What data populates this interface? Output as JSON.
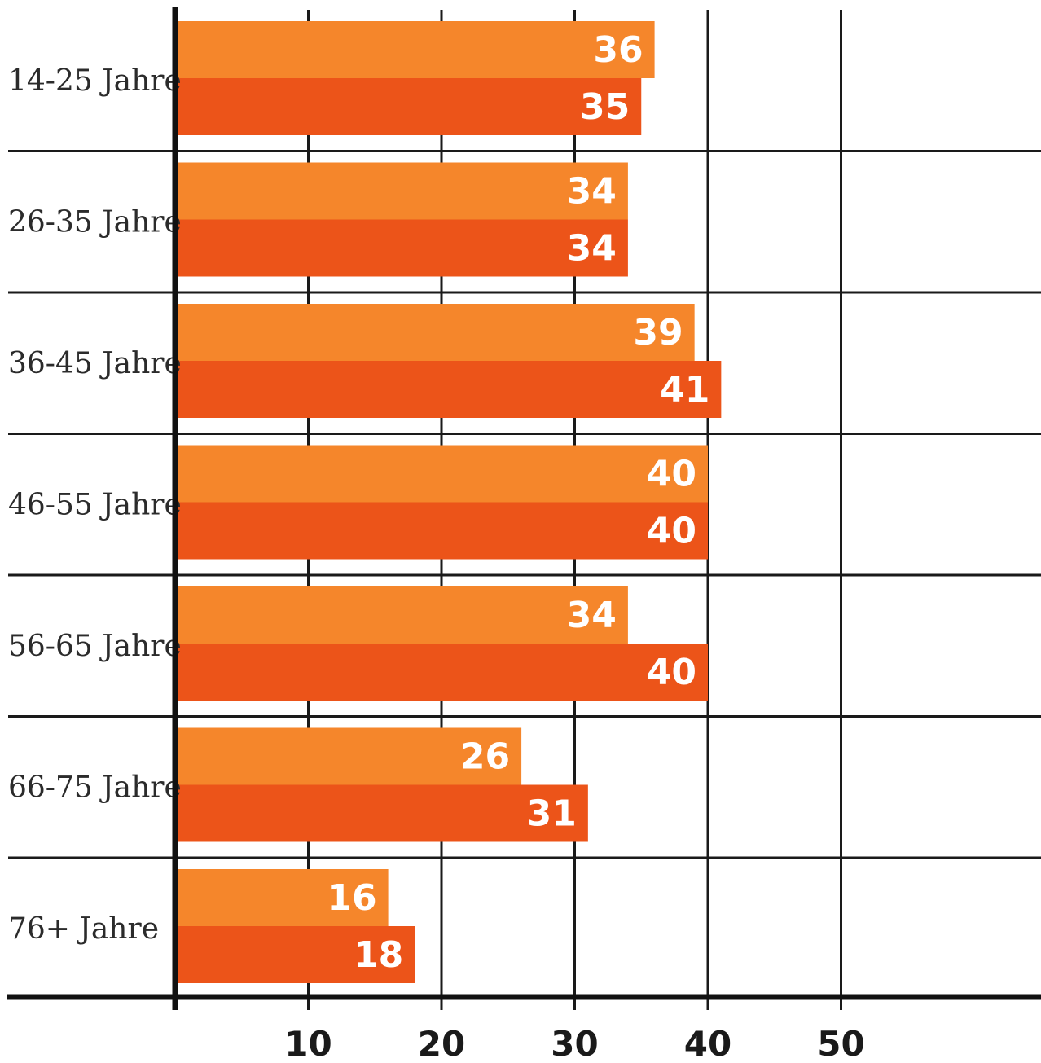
{
  "chart_data": {
    "type": "bar",
    "orientation": "horizontal",
    "categories": [
      "14-25 Jahre",
      "26-35 Jahre",
      "36-45 Jahre",
      "46-55 Jahre",
      "56-65 Jahre",
      "66-75 Jahre",
      "76+ Jahre"
    ],
    "series": [
      {
        "values": [
          36,
          34,
          39,
          40,
          34,
          26,
          16
        ],
        "color": "#f5862b"
      },
      {
        "values": [
          35,
          34,
          41,
          40,
          40,
          31,
          18
        ],
        "color": "#ec5419"
      }
    ],
    "x_ticks": [
      "10",
      "20",
      "30",
      "40",
      "50"
    ],
    "xlim": [
      0,
      60
    ],
    "grid": true,
    "title": "",
    "xlabel": "",
    "ylabel": ""
  }
}
